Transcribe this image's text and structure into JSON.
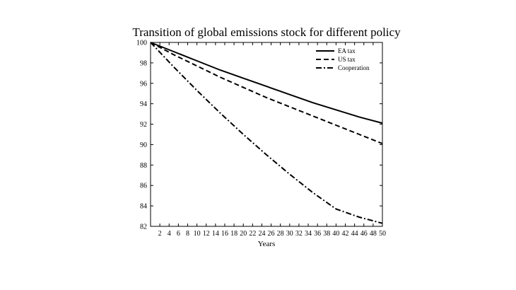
{
  "chart_data": {
    "type": "line",
    "title": "Transition of global emissions stock for different policy",
    "xlabel": "Years",
    "ylabel": "",
    "xlim": [
      0,
      50
    ],
    "ylim": [
      82,
      100
    ],
    "xticks": [
      2,
      4,
      6,
      8,
      10,
      12,
      14,
      16,
      18,
      20,
      22,
      24,
      26,
      28,
      30,
      32,
      34,
      36,
      38,
      40,
      42,
      44,
      46,
      48,
      50
    ],
    "yticks": [
      82,
      84,
      86,
      88,
      90,
      92,
      94,
      96,
      98,
      100
    ],
    "grid": false,
    "legend_position": "top-right",
    "x": [
      0,
      5,
      10,
      15,
      20,
      25,
      30,
      35,
      40,
      45,
      50
    ],
    "series": [
      {
        "name": "EA tax",
        "style": "solid",
        "values": [
          100,
          99.1,
          98.2,
          97.3,
          96.5,
          95.7,
          94.9,
          94.1,
          93.4,
          92.7,
          92.1
        ]
      },
      {
        "name": "US tax",
        "style": "dashed",
        "values": [
          100,
          98.8,
          97.7,
          96.6,
          95.6,
          94.6,
          93.7,
          92.8,
          91.9,
          91.0,
          90.1
        ]
      },
      {
        "name": "Cooperation",
        "style": "dashdot",
        "values": [
          100,
          97.6,
          95.3,
          93.1,
          91.0,
          89.0,
          87.1,
          85.3,
          83.7,
          82.9,
          82.3
        ]
      }
    ]
  }
}
